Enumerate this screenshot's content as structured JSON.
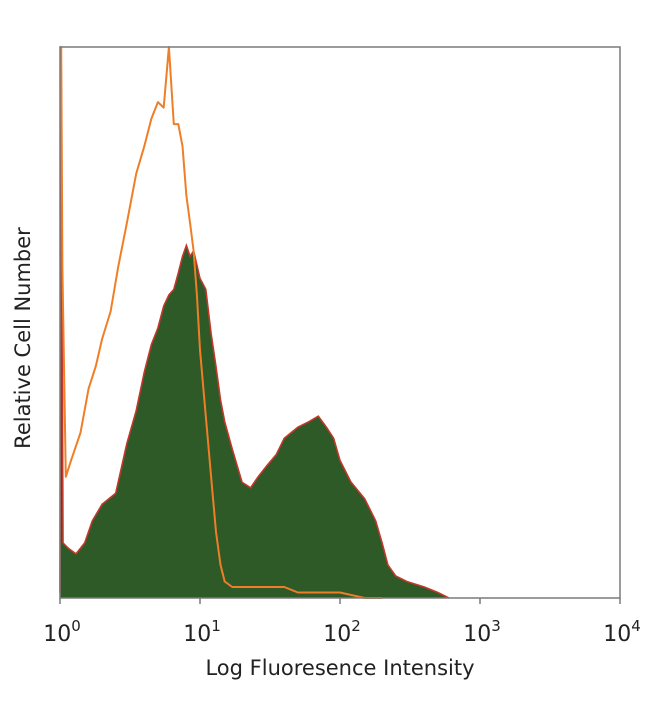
{
  "chart_data": {
    "type": "area",
    "title": "",
    "xlabel": "Log Fluoresence Intensity",
    "ylabel": "Relative Cell Number",
    "xscale": "log",
    "xlim": [
      1,
      10000
    ],
    "ylim": [
      0,
      100
    ],
    "legend": "none",
    "grid": false,
    "x_ticks": [
      {
        "base": "10",
        "exp": "0"
      },
      {
        "base": "10",
        "exp": "1"
      },
      {
        "base": "10",
        "exp": "2"
      },
      {
        "base": "10",
        "exp": "3"
      },
      {
        "base": "10",
        "exp": "4"
      }
    ],
    "series": [
      {
        "style": "filled",
        "color": "#2d5a27",
        "edge_color": "#c0392b",
        "points": [
          [
            1.0,
            1
          ],
          [
            1.02,
            97
          ],
          [
            1.05,
            10
          ],
          [
            1.15,
            9
          ],
          [
            1.3,
            8
          ],
          [
            1.5,
            10
          ],
          [
            1.7,
            14
          ],
          [
            2.0,
            17
          ],
          [
            2.5,
            19
          ],
          [
            3.0,
            28
          ],
          [
            3.5,
            34
          ],
          [
            4.0,
            41
          ],
          [
            4.5,
            46
          ],
          [
            5.0,
            49
          ],
          [
            5.5,
            53
          ],
          [
            6.0,
            55
          ],
          [
            6.5,
            56
          ],
          [
            7.0,
            59
          ],
          [
            7.5,
            62
          ],
          [
            8.0,
            64
          ],
          [
            8.5,
            62
          ],
          [
            9.0,
            63
          ],
          [
            10.0,
            58
          ],
          [
            11.0,
            56
          ],
          [
            12.0,
            48
          ],
          [
            13.0,
            42
          ],
          [
            14.0,
            36
          ],
          [
            15.0,
            32
          ],
          [
            17.0,
            27
          ],
          [
            20.0,
            21
          ],
          [
            23.0,
            20
          ],
          [
            26.0,
            22
          ],
          [
            30.0,
            24
          ],
          [
            35.0,
            26
          ],
          [
            40.0,
            29
          ],
          [
            50.0,
            31
          ],
          [
            60.0,
            32
          ],
          [
            70.0,
            33
          ],
          [
            80.0,
            31
          ],
          [
            90.0,
            29
          ],
          [
            100.0,
            25
          ],
          [
            120.0,
            21
          ],
          [
            150.0,
            18
          ],
          [
            180.0,
            14
          ],
          [
            200.0,
            10
          ],
          [
            220.0,
            6
          ],
          [
            250.0,
            4
          ],
          [
            300.0,
            3
          ],
          [
            400.0,
            2
          ],
          [
            500.0,
            1
          ],
          [
            600.0,
            0
          ]
        ]
      },
      {
        "style": "line",
        "color": "#f07e26",
        "points": [
          [
            1.0,
            100
          ],
          [
            1.02,
            100
          ],
          [
            1.04,
            60
          ],
          [
            1.1,
            22
          ],
          [
            1.2,
            25
          ],
          [
            1.4,
            30
          ],
          [
            1.6,
            38
          ],
          [
            1.8,
            42
          ],
          [
            2.0,
            47
          ],
          [
            2.3,
            52
          ],
          [
            2.6,
            60
          ],
          [
            3.0,
            68
          ],
          [
            3.5,
            77
          ],
          [
            4.0,
            82
          ],
          [
            4.5,
            87
          ],
          [
            5.0,
            90
          ],
          [
            5.5,
            89
          ],
          [
            6.0,
            100
          ],
          [
            6.5,
            86
          ],
          [
            7.0,
            86
          ],
          [
            7.5,
            82
          ],
          [
            8.0,
            73
          ],
          [
            8.5,
            68
          ],
          [
            9.0,
            63
          ],
          [
            9.5,
            55
          ],
          [
            10.0,
            45
          ],
          [
            11.0,
            33
          ],
          [
            12.0,
            22
          ],
          [
            13.0,
            12
          ],
          [
            14.0,
            6
          ],
          [
            15.0,
            3
          ],
          [
            17.0,
            2
          ],
          [
            20.0,
            2
          ],
          [
            30.0,
            2
          ],
          [
            40.0,
            2
          ],
          [
            50.0,
            1
          ],
          [
            70.0,
            1
          ],
          [
            100.0,
            1
          ],
          [
            150.0,
            0
          ],
          [
            200.0,
            0
          ]
        ]
      }
    ]
  }
}
